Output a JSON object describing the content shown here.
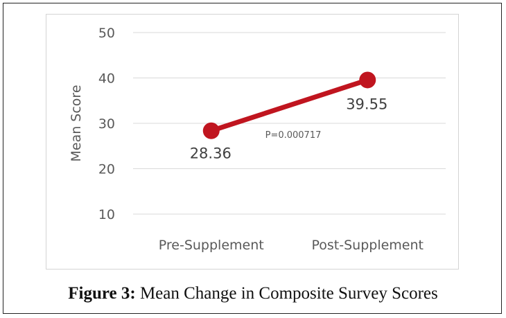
{
  "chart_data": {
    "type": "line",
    "categories": [
      "Pre-Supplement",
      "Post-Supplement"
    ],
    "series": [
      {
        "values": [
          28.36,
          39.55
        ],
        "data_labels": [
          "28.36",
          "39.55"
        ]
      }
    ],
    "ylabel": "Mean Score",
    "ylim": [
      10,
      50
    ],
    "yticks": [
      10,
      20,
      30,
      40,
      50
    ],
    "grid": true,
    "annotation": "P=0.000717",
    "line_color": "#c0151f"
  },
  "caption": {
    "label": "Figure 3:",
    "text": " Mean Change in Composite Survey Scores"
  }
}
